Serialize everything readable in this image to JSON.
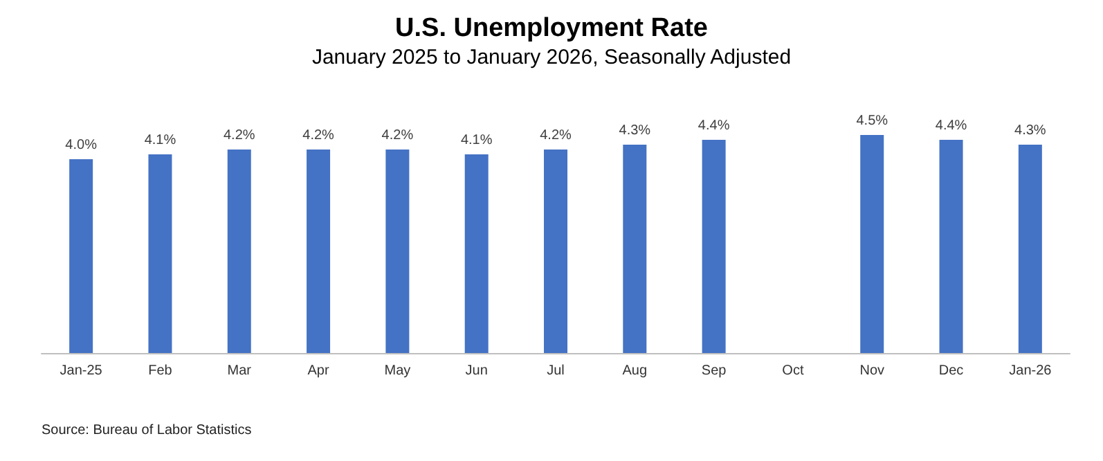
{
  "chart_data": {
    "type": "bar",
    "title": "U.S. Unemployment Rate",
    "subtitle": "January 2025 to January 2026, Seasonally Adjusted",
    "categories": [
      "Jan-25",
      "Feb",
      "Mar",
      "Apr",
      "May",
      "Jun",
      "Jul",
      "Aug",
      "Sep",
      "Oct",
      "Nov",
      "Dec",
      "Jan-26"
    ],
    "values": [
      4.0,
      4.1,
      4.2,
      4.2,
      4.2,
      4.1,
      4.2,
      4.3,
      4.4,
      null,
      4.5,
      4.4,
      4.3
    ],
    "value_labels": [
      "4.0%",
      "4.1%",
      "4.2%",
      "4.2%",
      "4.2%",
      "4.1%",
      "4.2%",
      "4.3%",
      "4.4%",
      null,
      "4.5%",
      "4.4%",
      "4.3%"
    ],
    "color": "#4472c4",
    "tick_labels": "x",
    "annotations": [
      "Source: Bureau of Labor Statistics"
    ]
  }
}
